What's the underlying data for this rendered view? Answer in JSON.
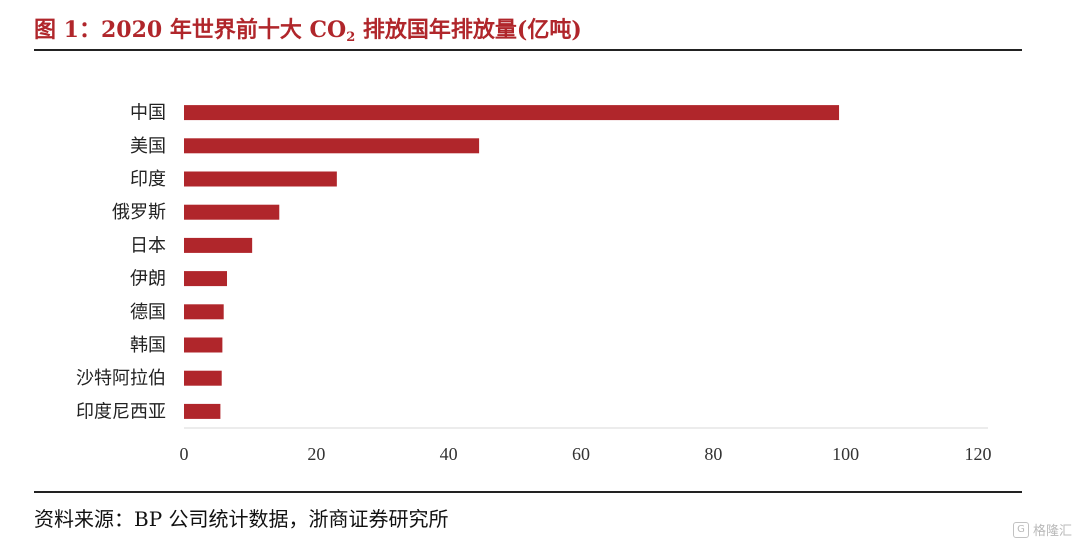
{
  "figure": {
    "title_prefix": "图 1：2020 年世界前十大 CO",
    "title_sub": "2",
    "title_suffix": " 排放国年排放量(亿吨)",
    "source": "资料来源：BP 公司统计数据，浙商证券研究所",
    "watermark_icon": "G",
    "watermark_text": "格隆汇"
  },
  "chart_data": {
    "type": "bar",
    "orientation": "horizontal",
    "categories": [
      "中国",
      "美国",
      "印度",
      "俄罗斯",
      "日本",
      "伊朗",
      "德国",
      "韩国",
      "沙特阿拉伯",
      "印度尼西亚"
    ],
    "values": [
      99.0,
      44.6,
      23.1,
      14.4,
      10.3,
      6.5,
      6.0,
      5.8,
      5.7,
      5.5
    ],
    "xlim": [
      0,
      120
    ],
    "xticks": [
      0,
      20,
      40,
      60,
      80,
      100,
      120
    ],
    "bar_color": "#b0262b",
    "grid": false
  }
}
